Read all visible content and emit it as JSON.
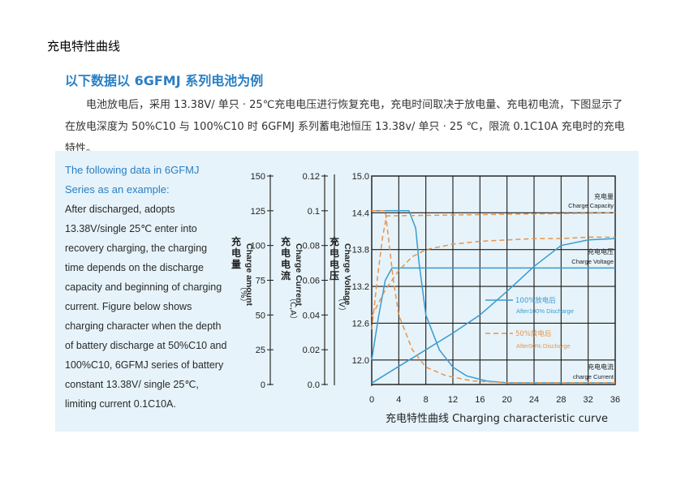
{
  "doc_title": "充电特性曲线",
  "heading": "以下数据以 6GFMJ 系列电池为例",
  "paragraph": "电池放电后，采用 13.38V/ 单只 · 25℃充电电压进行恢复充电，充电时间取决于放电量、充电初电流，下图显示了在放电深度为 50%C10 与 100%C10 时 6GFMJ 系列蓄电池恒压 13.38v/ 单只 · 25 ℃，限流 0.1C10A 充电时的充电特性。",
  "english_lead": "The following data in 6GFMJ Series as an example:",
  "english_body": "After discharged, adopts 13.38V/single 25℃ enter into recovery charging, the charging time depends on the discharge capacity and beginning of charging current. Figure below shows charging character when the depth of battery discharge at 50%C10 and 100%C10, 6GFMJ series of battery constant 13.38V/ single 25℃, limiting current 0.1C10A.",
  "colors": {
    "blue": "#3a9bd0",
    "orange": "#e8944a",
    "heading_blue": "#2a7fc4",
    "panel": "#e6f3fa"
  },
  "chart_data": {
    "type": "line",
    "title": "充电特性曲线  Charging characteristic curve",
    "xlabel": "",
    "x_ticks": [
      0,
      4,
      8,
      12,
      16,
      20,
      24,
      28,
      32,
      36
    ],
    "xlim": [
      0,
      36
    ],
    "axes": [
      {
        "name": "充电量 Charge amount (%)",
        "label_cn": "充电量",
        "label_en": "Charge amount",
        "unit": "（%）",
        "ticks": [
          "150",
          "125",
          "100",
          "75",
          "50",
          "25",
          "0"
        ],
        "lim": [
          0,
          150
        ]
      },
      {
        "name": "充电电流 Charge Current (CA)",
        "label_cn": "充电电流",
        "label_en": "Charge Current",
        "unit": "（C,A）",
        "ticks": [
          "0.12",
          "0.1",
          "0.08",
          "0.06",
          "0.04",
          "0.02",
          "0.0"
        ],
        "lim": [
          0,
          0.12
        ]
      },
      {
        "name": "充电电压 Charge Voltage (V)",
        "label_cn": "充电电压",
        "label_en": "Charge Voltage",
        "unit": "（V）",
        "ticks": [
          "15.0",
          "14.4",
          "13.8",
          "13.2",
          "12.6",
          "12.0"
        ],
        "lim": [
          11.6,
          15.0
        ]
      }
    ],
    "legend": [
      {
        "cn": "100%放电后",
        "en": "After100% Discharge",
        "style": "solid"
      },
      {
        "cn": "50%放电后",
        "en": "After50% Discharge",
        "style": "dashed"
      }
    ],
    "annotations": [
      {
        "cn": "充电量",
        "en": "Charge Capacity"
      },
      {
        "cn": "充电电压",
        "en": "Charge Voltage"
      },
      {
        "cn": "充电电流",
        "en": "charge Current"
      }
    ],
    "series": [
      {
        "name": "100%放电后",
        "quantity": "voltage",
        "x": [
          0,
          1,
          2,
          3,
          36
        ],
        "y": [
          12.0,
          12.7,
          13.3,
          13.5,
          13.5
        ]
      },
      {
        "name": "100%放电后",
        "quantity": "current",
        "x": [
          0,
          5.5,
          6.5,
          7,
          8,
          10,
          12,
          14,
          17,
          20,
          36
        ],
        "y": [
          0.1,
          0.1,
          0.09,
          0.07,
          0.04,
          0.02,
          0.01,
          0.005,
          0.002,
          0.001,
          0.001
        ]
      },
      {
        "name": "100%放电后",
        "quantity": "capacity",
        "x": [
          0,
          4,
          8,
          12,
          16,
          20,
          24,
          28,
          32,
          36
        ],
        "y": [
          1,
          13,
          25,
          37,
          50,
          67,
          85,
          100,
          104,
          105
        ]
      },
      {
        "name": "50%放电后",
        "quantity": "voltage",
        "x": [
          0,
          0.8,
          1.6,
          2.2,
          36
        ],
        "y": [
          12.5,
          13.3,
          14.0,
          14.35,
          14.4
        ]
      },
      {
        "name": "50%放电后",
        "quantity": "current",
        "x": [
          0,
          2,
          2.6,
          3.2,
          4,
          5,
          6,
          8,
          11,
          15,
          20,
          36
        ],
        "y": [
          0.1,
          0.1,
          0.08,
          0.06,
          0.04,
          0.03,
          0.02,
          0.01,
          0.005,
          0.002,
          0.001,
          0.001
        ]
      },
      {
        "name": "50%放电后",
        "quantity": "capacity",
        "x": [
          0,
          2,
          4,
          6,
          8,
          12,
          16,
          20,
          24,
          28,
          32,
          36
        ],
        "y": [
          49,
          68,
          82,
          92,
          97,
          101,
          103,
          104,
          105,
          105,
          106,
          106
        ]
      }
    ]
  }
}
